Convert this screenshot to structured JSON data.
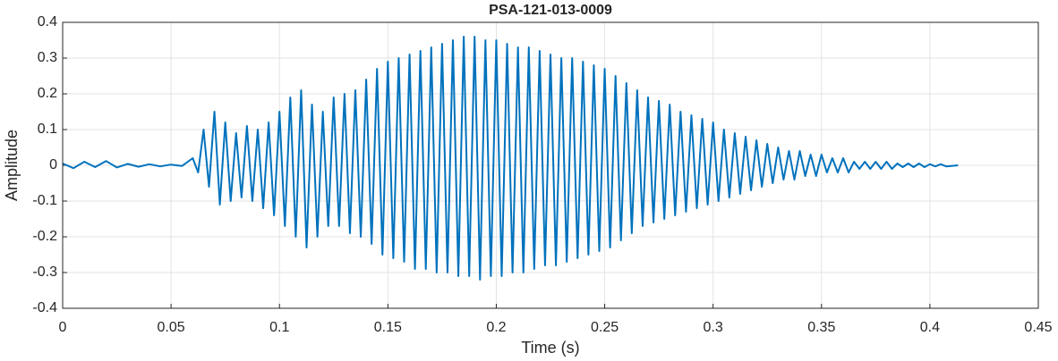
{
  "chart_data": {
    "type": "line",
    "title": "PSA-121-013-0009",
    "x_label": "Time (s)",
    "y_label": "Amplitude",
    "color": "#0072bd",
    "grid": true,
    "xlim": [
      0,
      0.45
    ],
    "xticks": [
      0,
      0.05,
      0.1,
      0.15,
      0.2,
      0.25,
      0.3,
      0.35,
      0.4,
      0.45
    ],
    "ylim": [
      -0.4,
      0.4
    ],
    "yticks": [
      -0.4,
      -0.3,
      -0.2,
      -0.1,
      0,
      0.1,
      0.2,
      0.3,
      0.4
    ],
    "x": [
      0,
      0.005,
      0.01,
      0.015,
      0.02,
      0.025,
      0.03,
      0.035,
      0.04,
      0.045,
      0.05,
      0.055,
      0.06,
      0.0625,
      0.065,
      0.0675,
      0.07,
      0.0725,
      0.075,
      0.0775,
      0.08,
      0.0825,
      0.085,
      0.0875,
      0.09,
      0.0925,
      0.095,
      0.0975,
      0.1,
      0.1025,
      0.105,
      0.1075,
      0.11,
      0.1125,
      0.115,
      0.1175,
      0.12,
      0.1225,
      0.125,
      0.1275,
      0.13,
      0.1325,
      0.135,
      0.1375,
      0.14,
      0.1425,
      0.145,
      0.1475,
      0.15,
      0.1525,
      0.155,
      0.1575,
      0.16,
      0.1625,
      0.165,
      0.1675,
      0.17,
      0.1725,
      0.175,
      0.1775,
      0.18,
      0.1825,
      0.185,
      0.1875,
      0.19,
      0.1925,
      0.195,
      0.1975,
      0.2,
      0.2025,
      0.205,
      0.2075,
      0.21,
      0.2125,
      0.215,
      0.2175,
      0.22,
      0.2225,
      0.225,
      0.2275,
      0.23,
      0.2325,
      0.235,
      0.2375,
      0.24,
      0.2425,
      0.245,
      0.2475,
      0.25,
      0.2525,
      0.255,
      0.2575,
      0.26,
      0.2625,
      0.265,
      0.2675,
      0.27,
      0.2725,
      0.275,
      0.2775,
      0.28,
      0.2825,
      0.285,
      0.2875,
      0.29,
      0.2925,
      0.295,
      0.2975,
      0.3,
      0.3025,
      0.305,
      0.3075,
      0.31,
      0.3125,
      0.315,
      0.3175,
      0.32,
      0.3225,
      0.325,
      0.3275,
      0.33,
      0.3325,
      0.335,
      0.3375,
      0.34,
      0.3425,
      0.345,
      0.3475,
      0.35,
      0.3525,
      0.355,
      0.3575,
      0.36,
      0.3625,
      0.365,
      0.3675,
      0.37,
      0.3725,
      0.375,
      0.3775,
      0.38,
      0.3825,
      0.385,
      0.3875,
      0.39,
      0.3925,
      0.395,
      0.3975,
      0.4,
      0.4025,
      0.405,
      0.4075,
      0.413
    ],
    "values": [
      0.005,
      -0.008,
      0.01,
      -0.005,
      0.012,
      -0.006,
      0.004,
      -0.004,
      0.003,
      -0.003,
      0.002,
      -0.002,
      0.02,
      -0.02,
      0.1,
      -0.06,
      0.15,
      -0.11,
      0.12,
      -0.1,
      0.09,
      -0.09,
      0.11,
      -0.1,
      0.1,
      -0.12,
      0.12,
      -0.14,
      0.15,
      -0.17,
      0.19,
      -0.2,
      0.21,
      -0.23,
      0.17,
      -0.2,
      0.15,
      -0.17,
      0.19,
      -0.17,
      0.2,
      -0.19,
      0.21,
      -0.2,
      0.24,
      -0.22,
      0.27,
      -0.25,
      0.29,
      -0.26,
      0.3,
      -0.27,
      0.31,
      -0.29,
      0.32,
      -0.29,
      0.33,
      -0.3,
      0.34,
      -0.3,
      0.35,
      -0.31,
      0.36,
      -0.31,
      0.36,
      -0.32,
      0.35,
      -0.31,
      0.35,
      -0.31,
      0.34,
      -0.3,
      0.33,
      -0.3,
      0.33,
      -0.29,
      0.32,
      -0.28,
      0.31,
      -0.28,
      0.3,
      -0.27,
      0.3,
      -0.26,
      0.29,
      -0.25,
      0.28,
      -0.24,
      0.27,
      -0.23,
      0.25,
      -0.21,
      0.23,
      -0.19,
      0.21,
      -0.17,
      0.19,
      -0.16,
      0.18,
      -0.15,
      0.17,
      -0.14,
      0.15,
      -0.13,
      0.14,
      -0.12,
      0.13,
      -0.11,
      0.12,
      -0.1,
      0.1,
      -0.09,
      0.09,
      -0.08,
      0.08,
      -0.07,
      0.07,
      -0.06,
      0.06,
      -0.05,
      0.05,
      -0.04,
      0.04,
      -0.04,
      0.04,
      -0.03,
      0.03,
      -0.03,
      0.03,
      -0.02,
      0.02,
      -0.02,
      0.02,
      -0.02,
      0.01,
      -0.01,
      0.01,
      -0.01,
      0.01,
      -0.01,
      0.01,
      -0.01,
      0.005,
      -0.005,
      0.005,
      -0.005,
      0.005,
      -0.005,
      0.003,
      -0.003,
      0.003,
      -0.003,
      0
    ]
  }
}
